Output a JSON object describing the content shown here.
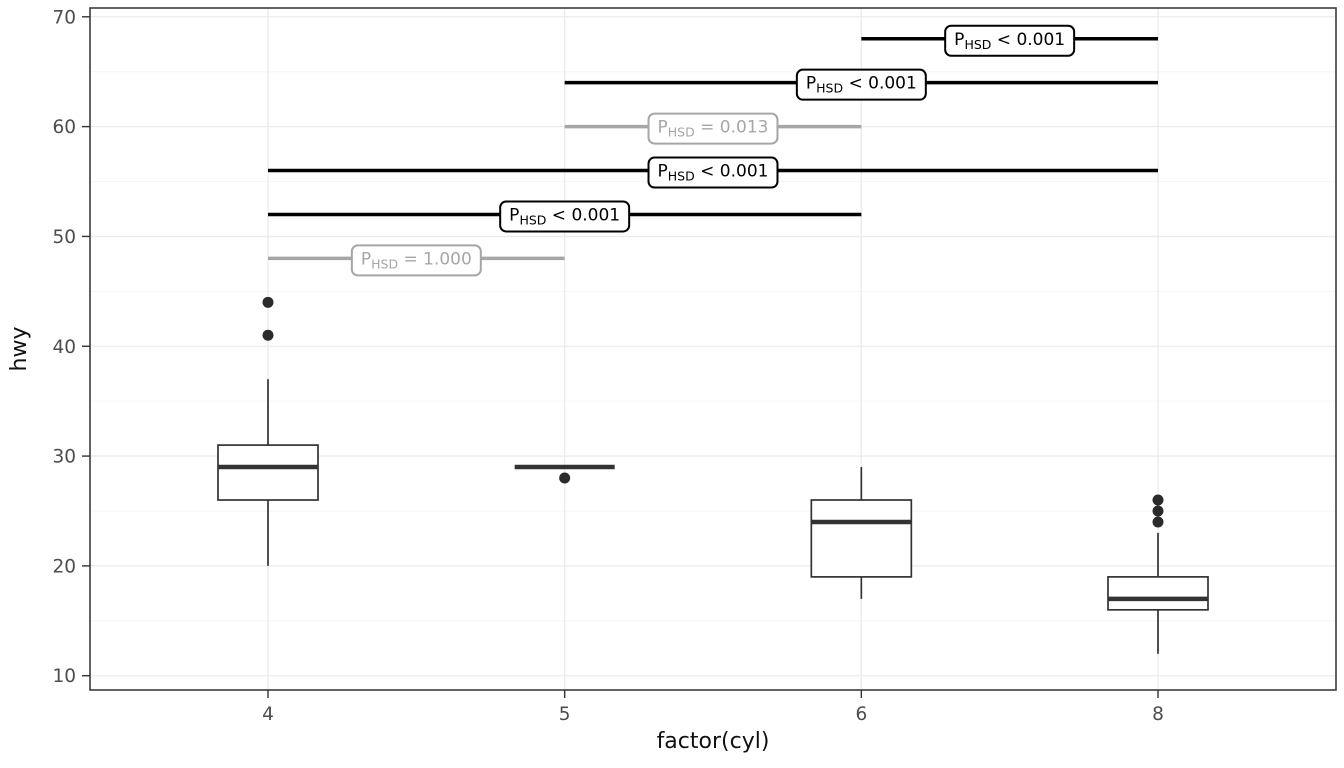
{
  "chart_data": {
    "type": "boxplot",
    "xlabel": "factor(cyl)",
    "ylabel": "hwy",
    "categories": [
      "4",
      "5",
      "6",
      "8"
    ],
    "ylim": [
      10,
      70
    ],
    "yticks": [
      10,
      20,
      30,
      40,
      50,
      60,
      70
    ],
    "grid": true,
    "legend": false,
    "boxes": [
      {
        "category": "4",
        "whisker_low": 20,
        "q1": 26,
        "median": 29,
        "q3": 31,
        "whisker_high": 37,
        "outliers": [
          41,
          44
        ]
      },
      {
        "category": "5",
        "whisker_low": 29,
        "q1": 29,
        "median": 29,
        "q3": 29,
        "whisker_high": 29,
        "outliers": [
          28
        ]
      },
      {
        "category": "6",
        "whisker_low": 17,
        "q1": 19,
        "median": 24,
        "q3": 26,
        "whisker_high": 29,
        "outliers": []
      },
      {
        "category": "8",
        "whisker_low": 12,
        "q1": 16,
        "median": 17,
        "q3": 19,
        "whisker_high": 23,
        "outliers": [
          24,
          25,
          26
        ]
      }
    ],
    "comparisons": [
      {
        "group1": "4",
        "group2": "5",
        "y": 48,
        "significant": false,
        "label": {
          "p": "P",
          "sub": "HSD",
          "rest": "= 1.000"
        }
      },
      {
        "group1": "4",
        "group2": "6",
        "y": 52,
        "significant": true,
        "label": {
          "p": "P",
          "sub": "HSD",
          "rest": "< 0.001"
        }
      },
      {
        "group1": "4",
        "group2": "8",
        "y": 56,
        "significant": true,
        "label": {
          "p": "P",
          "sub": "HSD",
          "rest": "< 0.001"
        }
      },
      {
        "group1": "5",
        "group2": "6",
        "y": 60,
        "significant": false,
        "label": {
          "p": "P",
          "sub": "HSD",
          "rest": "= 0.013"
        }
      },
      {
        "group1": "5",
        "group2": "8",
        "y": 64,
        "significant": true,
        "label": {
          "p": "P",
          "sub": "HSD",
          "rest": "< 0.001"
        }
      },
      {
        "group1": "6",
        "group2": "8",
        "y": 68,
        "significant": true,
        "label": {
          "p": "P",
          "sub": "HSD",
          "rest": "< 0.001"
        }
      }
    ],
    "colors": {
      "bar_significant": "#000000",
      "bar_nonsignificant": "#a6a6a6",
      "box_stroke": "#333333",
      "box_fill": "#ffffff",
      "point": "#2b2b2b",
      "grid_major": "#ebebeb",
      "grid_minor": "#f6f6f6",
      "panel_border": "#3c3c3c",
      "panel_bg": "#ffffff",
      "tick": "#333333",
      "tick_label": "#4d4d4d",
      "label_fill": "#ffffff"
    }
  }
}
